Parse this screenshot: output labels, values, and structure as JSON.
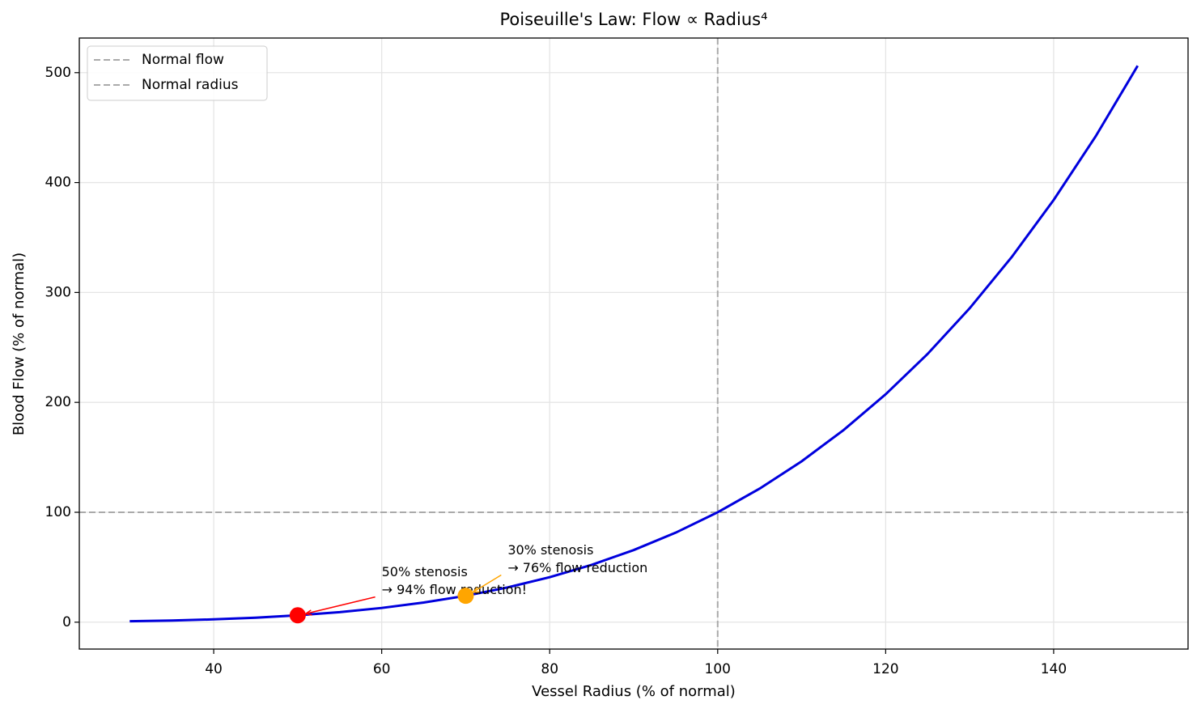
{
  "chart_data": {
    "type": "line",
    "title": "Poiseuille's Law: Flow ∝ Radius⁴",
    "x_label": "Vessel Radius (% of normal)",
    "y_label": "Blood Flow (% of normal)",
    "x": [
      30,
      35,
      40,
      45,
      50,
      55,
      60,
      65,
      70,
      75,
      80,
      85,
      90,
      95,
      100,
      105,
      110,
      115,
      120,
      125,
      130,
      135,
      140,
      145,
      150
    ],
    "series": [
      {
        "color": "#0000dd",
        "values": [
          0.81,
          1.5,
          2.56,
          4.1,
          6.25,
          9.15,
          12.96,
          17.85,
          24.01,
          31.64,
          40.96,
          52.2,
          65.61,
          81.45,
          100,
          121.55,
          146.41,
          174.9,
          207.36,
          244.14,
          285.61,
          332.15,
          384.16,
          442.05,
          506.25
        ]
      }
    ],
    "points": [
      {
        "x": 50,
        "y": 6.25,
        "color": "#ff0000"
      },
      {
        "x": 70,
        "y": 24.01,
        "color": "#ffa500"
      }
    ],
    "annotations": [
      {
        "lines": [
          "50% stenosis",
          "→ 94% flow reduction!"
        ],
        "xy": [
          50,
          6.25
        ],
        "xytext": [
          60,
          20
        ],
        "color": "#ff0000"
      },
      {
        "lines": [
          "30% stenosis",
          "→ 76% flow reduction"
        ],
        "xy": [
          70,
          24.01
        ],
        "xytext": [
          75,
          40
        ],
        "color": "#ffa500"
      }
    ],
    "reference_lines": [
      {
        "name": "Normal flow",
        "axis": "y",
        "value": 100,
        "color": "#aaaaaa"
      },
      {
        "name": "Normal radius",
        "axis": "x",
        "value": 100,
        "color": "#aaaaaa"
      }
    ],
    "xlim": [
      24,
      156
    ],
    "ylim": [
      -24.46,
      531.5
    ],
    "xticks": [
      40,
      60,
      80,
      100,
      120,
      140
    ],
    "yticks": [
      0,
      100,
      200,
      300,
      400,
      500
    ],
    "grid": true,
    "legend": "upper left"
  }
}
